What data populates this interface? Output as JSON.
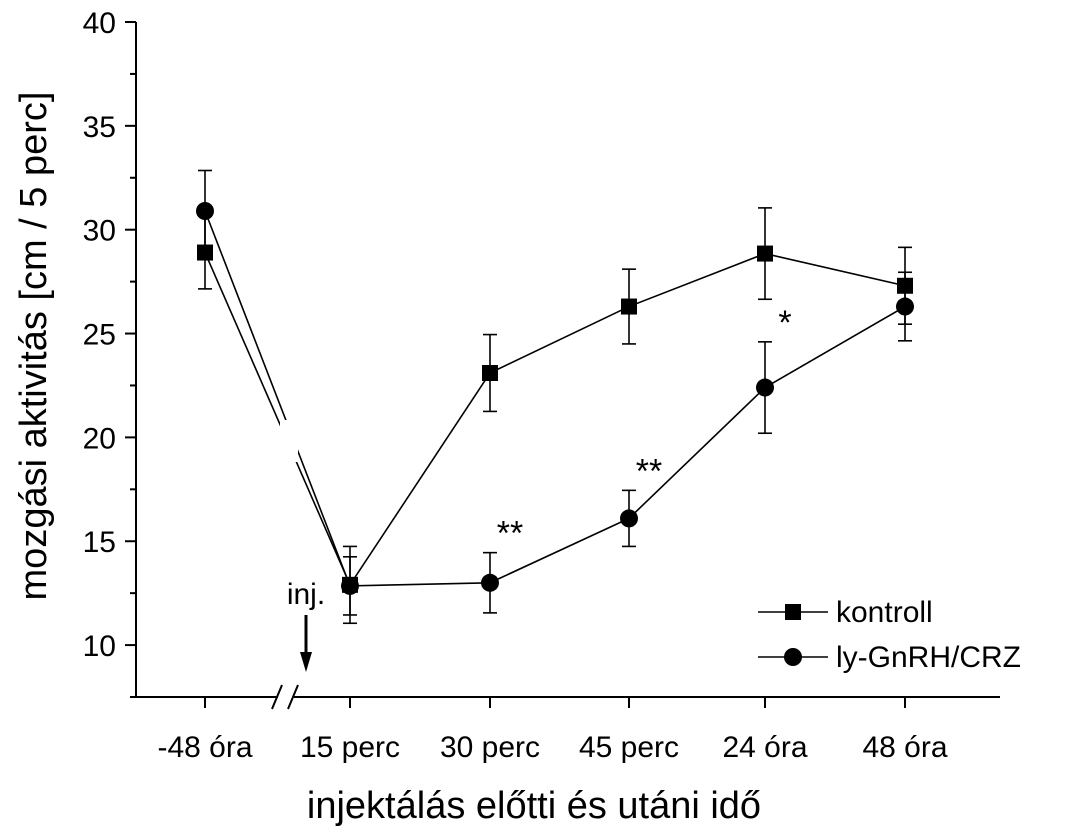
{
  "chart_data": {
    "type": "line",
    "xlabel": "injektálás előtti és utáni idő",
    "ylabel": "mozgási aktivitás [cm / 5 perc]",
    "categories": [
      "-48 óra",
      "15 perc",
      "30 perc",
      "45 perc",
      "24 óra",
      "48 óra"
    ],
    "ylim": [
      7.5,
      40
    ],
    "yticks": [
      10,
      15,
      20,
      25,
      30,
      35,
      40
    ],
    "axis_break": "between -48 óra and 15 perc",
    "grid": false,
    "legend_position": "bottom-right",
    "series": [
      {
        "name": "kontroll",
        "marker": "square",
        "values": [
          28.9,
          12.9,
          23.1,
          26.3,
          28.85,
          27.3
        ],
        "errors": [
          1.75,
          1.85,
          1.85,
          1.8,
          2.2,
          1.85
        ]
      },
      {
        "name": "ly-GnRH/CRZ",
        "marker": "circle",
        "values": [
          30.9,
          12.85,
          13.0,
          16.1,
          22.4,
          26.3
        ],
        "errors": [
          1.95,
          1.4,
          1.45,
          1.35,
          2.2,
          1.65
        ]
      }
    ],
    "annotations": [
      {
        "category": "30 perc",
        "text": "**",
        "near_series": "ly-GnRH/CRZ"
      },
      {
        "category": "45 perc",
        "text": "**",
        "near_series": "ly-GnRH/CRZ"
      },
      {
        "category": "24 óra",
        "text": "*",
        "near_series": "ly-GnRH/CRZ"
      },
      {
        "category": "15 perc",
        "text": "inj.",
        "arrow": true
      }
    ]
  }
}
